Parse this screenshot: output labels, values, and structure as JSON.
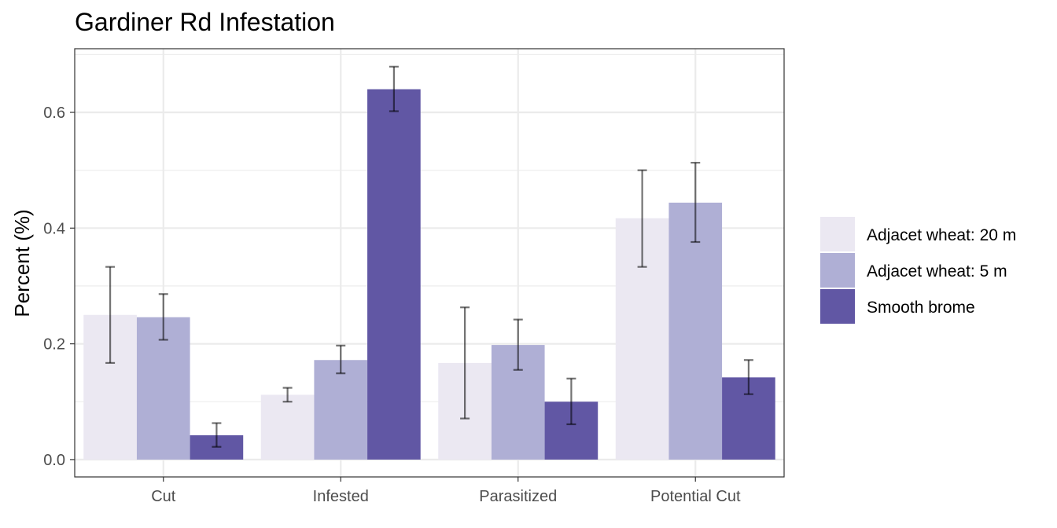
{
  "chart_data": {
    "type": "bar",
    "title": "Gardiner Rd Infestation",
    "xlabel": "",
    "ylabel": "Percent (%)",
    "ylim": [
      -0.03,
      0.71
    ],
    "yticks": [
      "0.0",
      "0.2",
      "0.4",
      "0.6"
    ],
    "grid": true,
    "legend_position": "right",
    "categories": [
      "Cut",
      "Infested",
      "Parasitized",
      "Potential Cut"
    ],
    "series": [
      {
        "name": "Adjacet wheat: 20 m",
        "color": "#ebe8f2",
        "values": [
          0.25,
          0.112,
          0.167,
          0.417
        ],
        "error_low": [
          0.167,
          0.1,
          0.071,
          0.333
        ],
        "error_high": [
          0.333,
          0.124,
          0.263,
          0.5
        ]
      },
      {
        "name": "Adjacet wheat: 5 m",
        "color": "#afafd5",
        "values": [
          0.246,
          0.172,
          0.198,
          0.444
        ],
        "error_low": [
          0.207,
          0.149,
          0.155,
          0.376
        ],
        "error_high": [
          0.286,
          0.197,
          0.242,
          0.513
        ]
      },
      {
        "name": "Smooth brome",
        "color": "#6157a4",
        "values": [
          0.042,
          0.64,
          0.1,
          0.142
        ],
        "error_low": [
          0.022,
          0.602,
          0.061,
          0.113
        ],
        "error_high": [
          0.063,
          0.679,
          0.14,
          0.172
        ]
      }
    ]
  }
}
